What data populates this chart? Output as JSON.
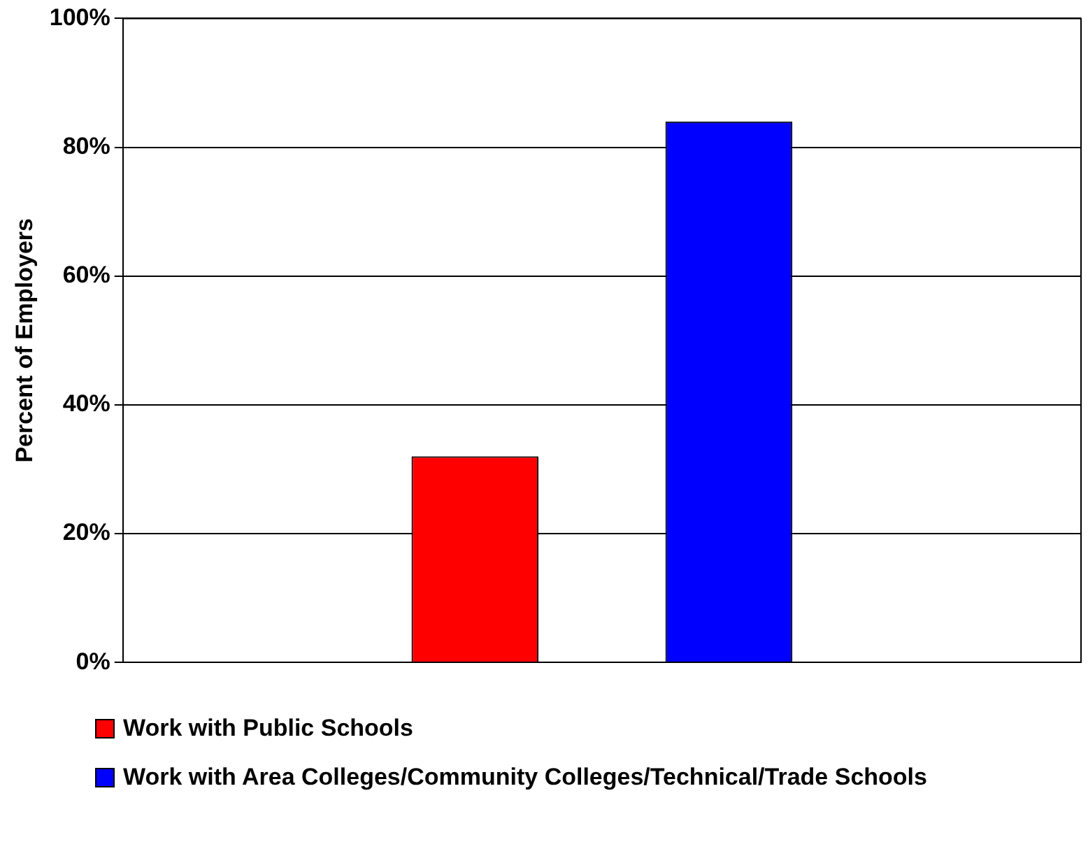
{
  "chart_data": {
    "type": "bar",
    "ylabel": "Percent of Employers",
    "categories": [
      null
    ],
    "series": [
      {
        "name": "Work with Public Schools",
        "color": "#ff0000",
        "values": [
          32
        ]
      },
      {
        "name": "Work with Area Colleges/Community Colleges/Technical/Trade Schools",
        "color": "#0000ff",
        "values": [
          84
        ]
      }
    ],
    "ylim": [
      0,
      100
    ],
    "yticks": [
      {
        "value": 0,
        "label": "0%"
      },
      {
        "value": 20,
        "label": "20%"
      },
      {
        "value": 40,
        "label": "40%"
      },
      {
        "value": 60,
        "label": "60%"
      },
      {
        "value": 80,
        "label": "80%"
      },
      {
        "value": 100,
        "label": "100%"
      }
    ],
    "grid": "y",
    "legend": "bottom"
  }
}
